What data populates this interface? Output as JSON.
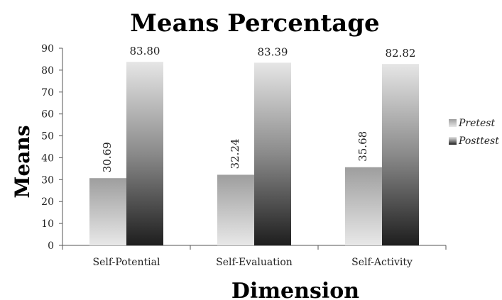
{
  "chart_data": {
    "type": "bar",
    "title": "Means Percentage",
    "xlabel": "Dimension",
    "ylabel": "Means",
    "categories": [
      "Self-Potential",
      "Self-Evaluation",
      "Self-Activity"
    ],
    "series": [
      {
        "name": "Pretest",
        "values": [
          30.69,
          32.24,
          35.68
        ],
        "labels": [
          "30.69",
          "32.24",
          "35.68"
        ],
        "style": "light-gradient"
      },
      {
        "name": "Posttest",
        "values": [
          83.8,
          83.39,
          82.82
        ],
        "labels": [
          "83.80",
          "83.39",
          "82.82"
        ],
        "style": "dark-gradient"
      }
    ],
    "ylim": [
      0,
      90
    ],
    "yticks": [
      "0",
      "10",
      "20",
      "30",
      "40",
      "50",
      "60",
      "70",
      "80",
      "90"
    ],
    "grid": false,
    "legend_position": "right"
  }
}
